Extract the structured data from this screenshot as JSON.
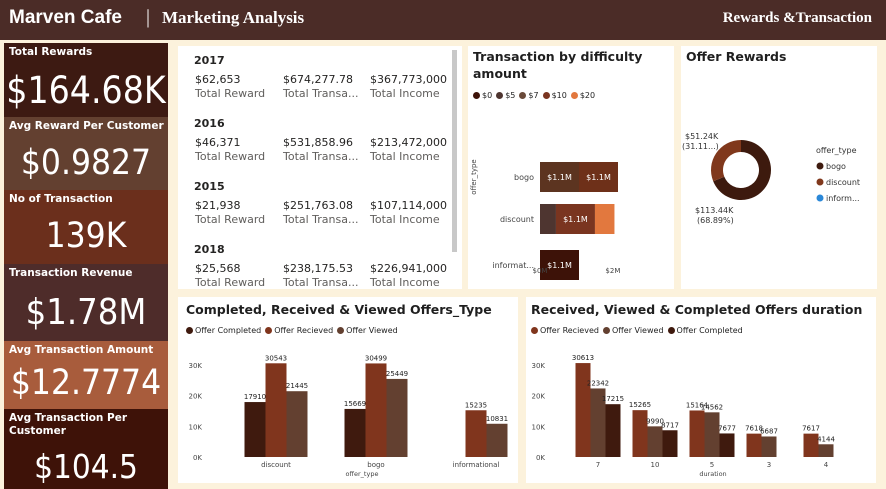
{
  "header": {
    "brand": "Marven Cafe",
    "separator": "|",
    "section": "Marketing Analysis",
    "page_title": "Rewards &Transaction"
  },
  "kpis": [
    {
      "label": "Total Rewards",
      "value": "$164.68K",
      "color": "#3d1a12"
    },
    {
      "label": "Avg Reward Per Customer",
      "value": "$0.9827",
      "color": "#634030"
    },
    {
      "label": "No of Transaction",
      "value": "139K",
      "color": "#6b2f1c"
    },
    {
      "label": "Transaction Revenue",
      "value": "$1.78M",
      "color": "#4e2c2a"
    },
    {
      "label": "Avg Transaction Amount",
      "value": "$12.7774",
      "color": "#a85c3c"
    },
    {
      "label": "Avg Transaction Per Customer",
      "value": "$104.5",
      "color": "#3e1208"
    }
  ],
  "year_table": {
    "columns": [
      "Total Reward",
      "Total Transa...",
      "Total Income"
    ],
    "rows": [
      {
        "year": "2017",
        "values": [
          "$62,653",
          "$674,277.78",
          "$367,773,000"
        ]
      },
      {
        "year": "2016",
        "values": [
          "$46,371",
          "$531,858.96",
          "$213,472,000"
        ]
      },
      {
        "year": "2015",
        "values": [
          "$21,938",
          "$251,763.08",
          "$107,114,000"
        ]
      },
      {
        "year": "2018",
        "values": [
          "$25,568",
          "$238,175.53",
          "$226,941,000"
        ]
      }
    ]
  },
  "chart_data": [
    {
      "type": "bar",
      "orientation": "horizontal-stacked",
      "title": "Transaction by difficulty amount",
      "ylabel": "offer_type",
      "categories": [
        "bogo",
        "discount",
        "informat..."
      ],
      "series": [
        {
          "name": "$0",
          "color": "#3d1208",
          "values": [
            0,
            0,
            0
          ]
        },
        {
          "name": "$5",
          "color": "#4e3530",
          "values": [
            0,
            0.45,
            0
          ]
        },
        {
          "name": "$7",
          "color": "#6a4a3a",
          "values": [
            0,
            0,
            0
          ]
        },
        {
          "name": "$10",
          "color": "#7a3520",
          "values": [
            1.1,
            1.1,
            1.1
          ]
        },
        {
          "name": "$20",
          "color": "#e2783e",
          "values": [
            0,
            0.55,
            0
          ]
        }
      ],
      "bogo_split": [
        1.1,
        1.1
      ],
      "data_labels": [
        [
          "$1.1M",
          "$1.1M"
        ],
        [
          "$1.1M"
        ],
        [
          "$1.1M"
        ]
      ],
      "xticks": [
        "$0M",
        "$2M"
      ],
      "xlim": [
        0,
        3
      ]
    },
    {
      "type": "pie",
      "title": "Offer Rewards",
      "legend_title": "offer_type",
      "slices": [
        {
          "name": "bogo",
          "value": 113.44,
          "label": "$113.44K",
          "pct": "(68.89%)",
          "color": "#3d1a0e"
        },
        {
          "name": "discount",
          "value": 51.24,
          "label": "$51.24K",
          "pct": "(31.11...)",
          "color": "#80381c"
        },
        {
          "name": "inform...",
          "value": 0,
          "label": "",
          "pct": "",
          "color": "#2b88d8"
        }
      ]
    },
    {
      "type": "bar",
      "title": "Completed, Received & Viewed Offers_Type",
      "xlabel": "offer_type",
      "categories": [
        "discount",
        "bogo",
        "informational"
      ],
      "series": [
        {
          "name": "Offer Completed",
          "color": "#3f1a0e",
          "values": [
            17910,
            15669,
            null
          ]
        },
        {
          "name": "Offer Recieved",
          "color": "#80351d",
          "values": [
            30543,
            30499,
            15235
          ]
        },
        {
          "name": "Offer Viewed",
          "color": "#634030",
          "values": [
            21445,
            25449,
            10831
          ]
        }
      ],
      "yticks": [
        "0K",
        "10K",
        "20K",
        "30K"
      ],
      "ylim": [
        0,
        35000
      ]
    },
    {
      "type": "bar",
      "title": "Received, Viewed & Completed Offers duration",
      "xlabel": "duration",
      "categories": [
        "7",
        "10",
        "5",
        "3",
        "4"
      ],
      "series": [
        {
          "name": "Offer Recieved",
          "color": "#80351d",
          "values": [
            30613,
            15265,
            15164,
            7618,
            7617
          ]
        },
        {
          "name": "Offer Viewed",
          "color": "#634030",
          "values": [
            22342,
            9990,
            14562,
            6687,
            4144
          ]
        },
        {
          "name": "Offer Completed",
          "color": "#3f1a0e",
          "values": [
            17215,
            8717,
            7677,
            null,
            null
          ]
        }
      ],
      "yticks": [
        "0K",
        "10K",
        "20K",
        "30K"
      ],
      "ylim": [
        0,
        35000
      ]
    }
  ]
}
